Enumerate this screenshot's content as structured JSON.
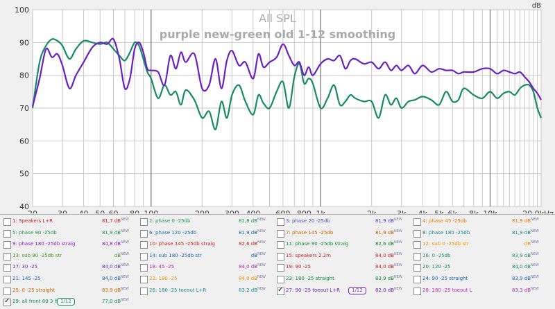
{
  "chart_data": {
    "type": "line",
    "title": "All SPL",
    "subtitle": "purple new-green old 1-12 smoothing",
    "ylabel": "dB",
    "xlabel": "",
    "xscale": "log",
    "xlim": [
      20,
      20000
    ],
    "ylim": [
      40,
      100
    ],
    "yticks": [
      "100",
      "90",
      "80",
      "70",
      "60",
      "50",
      "40"
    ],
    "xticks": [
      "20",
      "30",
      "40",
      "50",
      "60",
      "80",
      "100",
      "200",
      "300",
      "400",
      "600",
      "800",
      "1k",
      "2k",
      "3k",
      "4k",
      "5k",
      "6k",
      "8k",
      "10k",
      "20,0kHz"
    ],
    "grid": true,
    "background_color": "#ffffff",
    "grid_color": "#c8c8c8",
    "series": [
      {
        "name": "27: 90 -25 toeout L+R",
        "color": "#6b1fbf",
        "x": [
          20,
          22,
          24,
          26,
          28,
          30,
          33,
          36,
          40,
          45,
          50,
          55,
          60,
          65,
          70,
          75,
          80,
          85,
          90,
          95,
          100,
          110,
          120,
          130,
          140,
          150,
          160,
          180,
          200,
          220,
          240,
          260,
          280,
          300,
          330,
          360,
          400,
          430,
          460,
          500,
          550,
          600,
          650,
          700,
          750,
          800,
          850,
          900,
          1000,
          1100,
          1200,
          1300,
          1400,
          1500,
          1600,
          1800,
          2000,
          2200,
          2400,
          2600,
          2800,
          3000,
          3300,
          3600,
          4000,
          4500,
          5000,
          5500,
          6000,
          6500,
          7000,
          8000,
          9000,
          10000,
          11000,
          12000,
          13000,
          14000,
          15000,
          16000,
          17000,
          18000,
          19000,
          20000
        ],
        "y": [
          70.5,
          79,
          88,
          85.5,
          86.5,
          83,
          76,
          80,
          84,
          88.5,
          90,
          89.5,
          91,
          85,
          76,
          79,
          88,
          90,
          87,
          82,
          81.5,
          81,
          77,
          86,
          82,
          87,
          84,
          86.5,
          76,
          77,
          85,
          76,
          84.5,
          87.5,
          83,
          84,
          79,
          86.5,
          82.5,
          84,
          85.5,
          89.5,
          86,
          83,
          84,
          80,
          82.5,
          80,
          83.5,
          85,
          84.5,
          86,
          82,
          84.5,
          85,
          83.5,
          84,
          82,
          84,
          81.5,
          83,
          81.5,
          83,
          80.5,
          83,
          81,
          82,
          81.5,
          81.5,
          80.5,
          81,
          81,
          82,
          82,
          80.5,
          81.5,
          81,
          80.5,
          81,
          79.5,
          78,
          76,
          74.5,
          72.5
        ]
      },
      {
        "name": "29: all front 80 3 fil",
        "color": "#158a65",
        "x": [
          20,
          22,
          24,
          26,
          28,
          30,
          33,
          36,
          40,
          45,
          50,
          55,
          60,
          65,
          70,
          75,
          80,
          85,
          90,
          95,
          100,
          110,
          120,
          130,
          140,
          150,
          160,
          180,
          200,
          220,
          240,
          260,
          280,
          300,
          330,
          360,
          400,
          430,
          460,
          500,
          550,
          600,
          650,
          700,
          750,
          800,
          850,
          900,
          1000,
          1100,
          1200,
          1300,
          1400,
          1500,
          1600,
          1800,
          2000,
          2200,
          2400,
          2600,
          2800,
          3000,
          3300,
          3600,
          4000,
          4500,
          5000,
          5500,
          6000,
          6500,
          7000,
          8000,
          9000,
          10000,
          11000,
          12000,
          13000,
          14000,
          15000,
          16000,
          17000,
          18000,
          19000,
          20000
        ],
        "y": [
          70,
          84,
          89,
          91,
          90.5,
          89,
          85,
          88,
          90.5,
          90,
          89.5,
          90,
          88,
          86,
          84.5,
          87,
          90,
          89,
          85,
          81,
          79,
          73,
          77,
          74,
          75,
          71,
          75.5,
          72.5,
          67,
          69,
          63.5,
          72,
          67,
          74,
          77,
          72,
          68,
          74,
          71.5,
          70,
          75,
          78,
          70,
          79.5,
          83.5,
          77.5,
          79,
          77.5,
          70,
          73,
          77,
          71,
          72,
          74,
          73,
          72,
          72,
          67,
          74,
          71,
          73,
          70,
          72,
          72.5,
          73.5,
          72.5,
          71,
          75,
          72,
          72.5,
          76,
          74,
          73,
          75,
          73,
          74.5,
          75,
          74,
          76,
          77,
          77,
          75,
          70,
          67
        ]
      }
    ]
  },
  "legend": [
    [
      {
        "label": "1: Speakers L+R",
        "value": "81,7 dB",
        "new": "NEW",
        "checked": false,
        "color": "#c81e1e"
      },
      {
        "label": "2: phase 0 -25db",
        "value": "81,8 dB",
        "new": "NEW",
        "checked": false,
        "color": "#1e9650"
      },
      {
        "label": "3: phase 20 -25db",
        "value": "81,9 dB",
        "new": "NEW",
        "checked": false,
        "color": "#4b4bd2"
      },
      {
        "label": "4: phase 45 -25db",
        "value": "81,9 dB",
        "new": "NEW",
        "checked": false,
        "color": "#e67800"
      }
    ],
    [
      {
        "label": "5: phase 90 -25db",
        "value": "81,9 dB",
        "new": "NEW",
        "checked": false,
        "color": "#1e9650"
      },
      {
        "label": "6: phase 120 -25db",
        "value": "81,9 dB",
        "new": "NEW",
        "checked": false,
        "color": "#1e64b4"
      },
      {
        "label": "7: phase 145 -25db",
        "value": "81,9 dB",
        "new": "NEW",
        "checked": false,
        "color": "#c86400"
      },
      {
        "label": "8: phase 180 -25db",
        "value": "81,9 dB",
        "new": "NEW",
        "checked": false,
        "color": "#1e8c8c"
      }
    ],
    [
      {
        "label": "9: phase 180 -25db straig",
        "value": "84,8 dB",
        "new": "NEW",
        "checked": false,
        "color": "#8c1ec8"
      },
      {
        "label": "10: phase 145 -25db straig",
        "value": "82,6 dB",
        "new": "NEW",
        "checked": false,
        "color": "#c81e1e"
      },
      {
        "label": "11: phase 90 -25db straig",
        "value": "82,6 dB",
        "new": "NEW",
        "checked": false,
        "color": "#148c3c"
      },
      {
        "label": "12: sub 0 -25db str",
        "value": "dB",
        "new": "NEW",
        "checked": false,
        "color": "#e69600"
      }
    ],
    [
      {
        "label": "13: sub 90 -25db str",
        "value": "dB",
        "new": "NEW",
        "checked": false,
        "color": "#3c9628"
      },
      {
        "label": "14: sub 180 -25db str",
        "value": "dB",
        "new": "NEW",
        "checked": false,
        "color": "#1e64b4"
      },
      {
        "label": "15: speakers 2.2m",
        "value": "84,0 dB",
        "new": "NEW",
        "checked": false,
        "color": "#c81e1e"
      },
      {
        "label": "16: 0 -25db",
        "value": "83,9 dB",
        "new": "NEW",
        "checked": false,
        "color": "#1e8c6e"
      }
    ],
    [
      {
        "label": "17: 30 -25",
        "value": "84,0 dB",
        "new": "NEW",
        "checked": false,
        "color": "#5a32c8"
      },
      {
        "label": "18: 45 -25",
        "value": "84,0 dB",
        "new": "NEW",
        "checked": false,
        "color": "#b428b4"
      },
      {
        "label": "19: 90 -25",
        "value": "84,0 dB",
        "new": "NEW",
        "checked": false,
        "color": "#c81e1e"
      },
      {
        "label": "20: 120 -25",
        "value": "84,0 dB",
        "new": "NEW",
        "checked": false,
        "color": "#148c50"
      }
    ],
    [
      {
        "label": "21: 145 -25",
        "value": "84,0 dB",
        "new": "NEW",
        "checked": false,
        "color": "#1e64b4"
      },
      {
        "label": "22: 180 -25",
        "value": "84,0 dB",
        "new": "NEW",
        "checked": false,
        "color": "#e69600"
      },
      {
        "label": "23: 180 -25 straight",
        "value": "83,9 dB",
        "new": "NEW",
        "checked": false,
        "color": "#148c3c"
      },
      {
        "label": "24: 90 -25 straight",
        "value": "83,9 dB",
        "new": "NEW",
        "checked": false,
        "color": "#1e64b4"
      }
    ],
    [
      {
        "label": "25: 0 -25 straight",
        "value": "83,9 dB",
        "new": "NEW",
        "checked": false,
        "color": "#c86400"
      },
      {
        "label": "26: 180 -25 toeout L+R",
        "value": "83,2 dB",
        "new": "NEW",
        "checked": false,
        "color": "#1e8c8c"
      },
      {
        "label": "27: 90 -25 toeout L+R",
        "value": "82,0 dB",
        "new": "NEW",
        "checked": true,
        "color": "#6b1fbf",
        "smoothing": "1/12"
      },
      {
        "label": "28: 180 -25 toeout L",
        "value": "83,3 dB",
        "new": "NEW",
        "checked": false,
        "color": "#b428b4"
      }
    ],
    [
      {
        "label": "29: all front 80 3 fil",
        "value": "77,0 dB",
        "new": "NEW",
        "checked": true,
        "color": "#158a65",
        "smoothing": "1/12"
      }
    ]
  ]
}
